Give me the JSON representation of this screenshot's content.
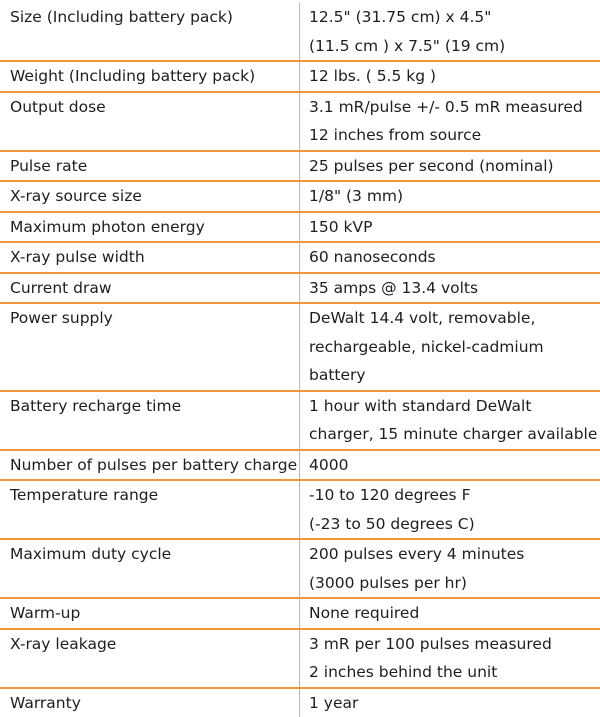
{
  "specs": [
    {
      "label": "Size (Including battery pack)",
      "lines": [
        "12.5\" (31.75 cm) x 4.5\"",
        "(11.5 cm ) x 7.5\" (19 cm)"
      ]
    },
    {
      "label": "Weight (Including battery pack)",
      "lines": [
        "12 lbs. ( 5.5 kg )"
      ]
    },
    {
      "label": "Output dose",
      "lines": [
        "3.1 mR/pulse +/- 0.5 mR measured",
        "12 inches from source"
      ]
    },
    {
      "label": "Pulse rate",
      "lines": [
        "25 pulses per second (nominal)"
      ]
    },
    {
      "label": "X-ray source size",
      "lines": [
        "1/8\" (3 mm)"
      ]
    },
    {
      "label": "Maximum photon energy",
      "lines": [
        "150 kVP"
      ]
    },
    {
      "label": "X-ray pulse width",
      "lines": [
        "60 nanoseconds"
      ]
    },
    {
      "label": "Current draw",
      "lines": [
        "35 amps @ 13.4 volts"
      ]
    },
    {
      "label": "Power supply",
      "lines": [
        "DeWalt    14.4 volt, removable,",
        "rechargeable, nickel-cadmium",
        "battery"
      ]
    },
    {
      "label": "Battery recharge time",
      "lines": [
        "1 hour with standard DeWalt",
        "charger, 15 minute charger available"
      ]
    },
    {
      "label": "Number of pulses per battery charge",
      "lines": [
        "4000"
      ]
    },
    {
      "label": "Temperature range",
      "lines": [
        "-10 to 120 degrees F",
        "(-23 to 50 degrees C)"
      ]
    },
    {
      "label": "Maximum duty cycle",
      "lines": [
        "200 pulses every 4 minutes",
        "(3000 pulses per hr)"
      ]
    },
    {
      "label": "Warm-up",
      "lines": [
        "None required"
      ]
    },
    {
      "label": "X-ray leakage",
      "lines": [
        "3 mR per 100 pulses measured",
        "2 inches behind the unit"
      ]
    },
    {
      "label": "Warranty",
      "lines": [
        "1 year"
      ]
    }
  ],
  "colors": {
    "rule": "#f0973a",
    "divider": "#b9b9b9",
    "text": "#1e1e1e"
  }
}
